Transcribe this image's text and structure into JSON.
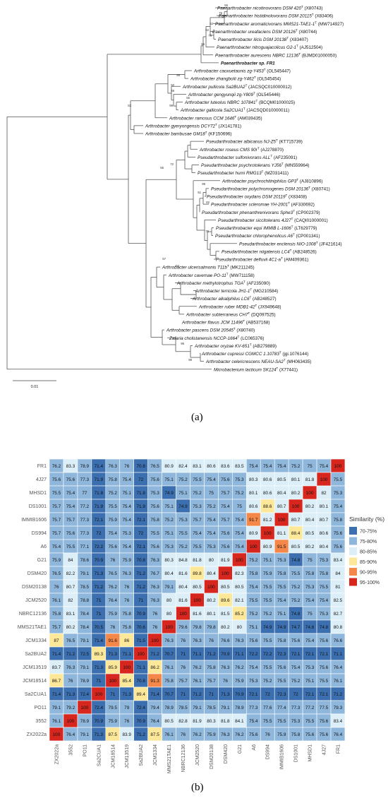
{
  "figure": {
    "panel_a_label": "(a)",
    "panel_b_label": "(b)"
  },
  "tree": {
    "taxa": [
      {
        "name": "Paenarthrobacter nicotinovorans DSM 420",
        "sup": "T",
        "acc": "(X80743)",
        "bold": false
      },
      {
        "name": "Paenarthrobacter histidinolovorans DSM 20115",
        "sup": "T",
        "acc": "(X83406)",
        "bold": false
      },
      {
        "name": "Paenarthrobacter aromaticivorans MMS21-TAE1-1",
        "sup": "T",
        "acc": "(MW714927)",
        "bold": false
      },
      {
        "name": "Paenarthrobacter ureafaciens DSM 20126",
        "sup": "T",
        "acc": "(X80744)",
        "bold": false
      },
      {
        "name": "Paenarthrobacter ilicis DSM 20138",
        "sup": "T",
        "acc": "(X83407)",
        "bold": false
      },
      {
        "name": "Paenarthrobacter nitroguajacolicus G2-1",
        "sup": "T",
        "acc": "(AJ512504)",
        "bold": false
      },
      {
        "name": "Paenarthrobacter aurescens NBRC 12136",
        "sup": "T",
        "acc": "(BJMD01000050)",
        "bold": false
      },
      {
        "name": "Paenarthrobacter sp. FR1",
        "sup": "",
        "acc": "",
        "bold": true
      },
      {
        "name": "Arthrobacter caoxuetaonis zg-Y453",
        "sup": "T",
        "acc": "(OL545447)",
        "bold": false
      },
      {
        "name": "Arthrobacter zhangbolii zg-Y462",
        "sup": "T",
        "acc": "(OL545454)",
        "bold": false
      },
      {
        "name": "Arthrobacter pullicola Sa2BUA2",
        "sup": "T",
        "acc": "(JACSQC010000012)",
        "bold": false
      },
      {
        "name": "Arthrobacter gengyunqii zg-Y809",
        "sup": "T",
        "acc": "(OL545446)",
        "bold": false
      },
      {
        "name": "Arthrobacter luteolus NBRC 107841",
        "sup": "T",
        "acc": "(BCQM01000025)",
        "bold": false
      },
      {
        "name": "Arthrobacter gallicola Sa2CUA1",
        "sup": "T",
        "acc": "(JACSQD010000011)",
        "bold": false
      },
      {
        "name": "Arthrobacter ramosus CCM 1646",
        "sup": "T",
        "acc": "(AM039435)",
        "bold": false
      },
      {
        "name": "Arthrobacter gyeryongensis DCY72",
        "sup": "T",
        "acc": "(JX141781)",
        "bold": false
      },
      {
        "name": "Arthrobacter bambusae GM18",
        "sup": "T",
        "acc": "(KF150696)",
        "bold": false
      },
      {
        "name": "Pseudarthrobacter albicanus NJ-Z5",
        "sup": "T",
        "acc": "(KT715739)",
        "bold": false
      },
      {
        "name": "Arthrobacter roseus CMS 90r",
        "sup": "T",
        "acc": "(AJ278870)",
        "bold": false
      },
      {
        "name": "Pseudarthrobacter sulfonivorans ALL",
        "sup": "T",
        "acc": "(AF235091)",
        "bold": false
      },
      {
        "name": "Pseudarthrobacter psychrotolerans YJ56",
        "sup": "T",
        "acc": "(MN559964)",
        "bold": false
      },
      {
        "name": "Pseudarthrobacter humi RMG13",
        "sup": "T",
        "acc": "(MZ031411)",
        "bold": false
      },
      {
        "name": "Arthrobacter psychrochitiniphilus GP3",
        "sup": "T",
        "acc": "(AJ810896)",
        "bold": false
      },
      {
        "name": "Pseudarthrobacter polychromogenes DSM 20136",
        "sup": "T",
        "acc": "(X80741)",
        "bold": false
      },
      {
        "name": "Pseudarthrobacter oxydans DSM 20119",
        "sup": "T",
        "acc": "(X83408)",
        "bold": false
      },
      {
        "name": "Pseudarthrobacter scleromae YH-2001",
        "sup": "T",
        "acc": "(AF330692)",
        "bold": false
      },
      {
        "name": "Pseudarthrobacter phenanthrenivorans Sphe3",
        "sup": "T",
        "acc": "(CP002379)",
        "bold": false
      },
      {
        "name": "Pseudarthrobacter siccitolerans 4J27",
        "sup": "T",
        "acc": "(CAQI01000001)",
        "bold": false
      },
      {
        "name": "Pseudarthrobacter equi IMMIB L-1606",
        "sup": "T",
        "acc": "(LT629779)",
        "bold": false
      },
      {
        "name": "Pseudarthrobacter chlorophenolicus A6",
        "sup": "T",
        "acc": "(CP001341)",
        "bold": false
      },
      {
        "name": "Pseudarthrobacter enclensis NIO-1008",
        "sup": "T",
        "acc": "(JF421614)",
        "bold": false
      },
      {
        "name": "Pseudarthrobacter niigatensis LC4",
        "sup": "T",
        "acc": "(AB248526)",
        "bold": false
      },
      {
        "name": "Pseudarthrobacter defluvii 4C1-a",
        "sup": "T",
        "acc": "(AM409361)",
        "bold": false
      },
      {
        "name": "Arthrobacter ulcerisalmonis T11b",
        "sup": "T",
        "acc": "(MK211245)",
        "bold": false
      },
      {
        "name": "Arthrobacter cavernae PO-11",
        "sup": "T",
        "acc": "(MW711158)",
        "bold": false
      },
      {
        "name": "Arthrobacter methylotrophus TGA",
        "sup": "T",
        "acc": "(AF235090)",
        "bold": false
      },
      {
        "name": "Arthrobacter terricola JH1-1",
        "sup": "T",
        "acc": "(MG210584)",
        "bold": false
      },
      {
        "name": "Arthrobacter alkaliphilus LC6",
        "sup": "T",
        "acc": "(AB248527)",
        "bold": false
      },
      {
        "name": "Arthrobacter ruber MDB1-42",
        "sup": "T",
        "acc": "(JX949648)",
        "bold": false
      },
      {
        "name": "Arthrobacter subterraneus CH7",
        "sup": "T",
        "acc": "(DQ097525)",
        "bold": false
      },
      {
        "name": "Arthrobacter flavus JCM 11496",
        "sup": "T",
        "acc": "(AB537168)",
        "bold": false
      },
      {
        "name": "Arthrobacter pascens DSM 20545",
        "sup": "T",
        "acc": "(X80740)",
        "bold": false
      },
      {
        "name": "Zafaria cholistanensis NCCP-1664",
        "sup": "T",
        "acc": "(LC065376)",
        "bold": false
      },
      {
        "name": "Arthrobacter oryzae KV-651",
        "sup": "T",
        "acc": "(AB279889)",
        "bold": false
      },
      {
        "name": "Arthrobacter cupressi CGMCC 1.10783",
        "sup": "T",
        "acc": "(jgi.1076144)",
        "bold": false
      },
      {
        "name": "Arthrobacter celericrescens NEAU-SA2",
        "sup": "T",
        "acc": "(MH063435)",
        "bold": false
      },
      {
        "name": "Microbacterium lacticum SK124",
        "sup": "T",
        "acc": "(X77441)",
        "bold": false
      }
    ],
    "bootstrap": [
      "65",
      "76",
      "52",
      "62",
      "79",
      "56",
      "99",
      "50",
      "69",
      "56",
      "99",
      "63",
      "72",
      "55",
      "99",
      "51",
      "82",
      "75",
      "57",
      "94",
      "98",
      "96"
    ],
    "scale_label": "0.01"
  },
  "heatmap": {
    "row_labels": [
      "FR1",
      "4J27",
      "MHSD1",
      "DS1001",
      "IMMIB1606",
      "DS994",
      "A6",
      "G21",
      "DSM420",
      "DSM20138",
      "JCM2520",
      "NBRC12136",
      "MMS21TAE1",
      "JCM1334",
      "Sa2BUA2",
      "JCM13519",
      "JCM18514",
      "Sa2CUA1",
      "PO11",
      "3552",
      "ZX2022a"
    ],
    "col_labels": [
      "ZX2022a",
      "3552",
      "PO11",
      "Sa2CUA1",
      "JCM18514",
      "JCM13519",
      "Sa2BUA2",
      "JCM1334",
      "MMS21TAE1",
      "NBRC12136",
      "JCM2520",
      "DSM20138",
      "DSM420",
      "G21",
      "A6",
      "DS994",
      "IMMIB1606",
      "DS1001",
      "MHSD1",
      "4J27",
      "FR1"
    ],
    "values": [
      [
        "76.2",
        "83.3",
        "78.9",
        "71.4",
        "76.3",
        "76",
        "70.8",
        "76.5",
        "80.9",
        "82.4",
        "83.1",
        "80.6",
        "83.6",
        "83.5",
        "75.4",
        "75.4",
        "75.4",
        "75.2",
        "75",
        "75.4",
        "100"
      ],
      [
        "75.6",
        "75.6",
        "77.3",
        "71.9",
        "75.8",
        "75.4",
        "72",
        "75.6",
        "75.1",
        "75.2",
        "75.5",
        "75.4",
        "75.6",
        "75.3",
        "80.3",
        "80.6",
        "80.5",
        "80.1",
        "81.8",
        "100",
        "75.5"
      ],
      [
        "75.5",
        "75.4",
        "77",
        "71.8",
        "75.2",
        "75.1",
        "71.8",
        "75.3",
        "74.9",
        "75.1",
        "75.2",
        "75",
        "75.7",
        "75.2",
        "80.1",
        "80.6",
        "80.4",
        "80.2",
        "100",
        "82",
        "75.3"
      ],
      [
        "75.7",
        "75.4",
        "77.2",
        "71.9",
        "75.5",
        "75.4",
        "71.9",
        "75.6",
        "75.1",
        "74.9",
        "75.3",
        "75.2",
        "75.4",
        "75",
        "80.6",
        "88.6",
        "80.7",
        "100",
        "80.2",
        "80.1",
        "75.4"
      ],
      [
        "75.7",
        "75.7",
        "77.3",
        "72.1",
        "75.9",
        "75.4",
        "72.1",
        "75.8",
        "75.2",
        "75.3",
        "75.7",
        "75.4",
        "75.7",
        "75.4",
        "91.7",
        "81.2",
        "100",
        "80.7",
        "80.4",
        "80.7",
        "75.8"
      ],
      [
        "75.7",
        "75.6",
        "77.3",
        "72",
        "75.4",
        "75.3",
        "72",
        "75.5",
        "75.1",
        "75.5",
        "75.4",
        "75.4",
        "75.6",
        "75.4",
        "80.9",
        "100",
        "81.1",
        "88.4",
        "80.5",
        "80.6",
        "75.6"
      ],
      [
        "75.4",
        "75.5",
        "77.1",
        "72.2",
        "75.6",
        "75.4",
        "72.1",
        "75.6",
        "75.3",
        "75.2",
        "75.5",
        "75.3",
        "75.6",
        "75.4",
        "100",
        "80.9",
        "91.5",
        "80.5",
        "80.2",
        "80.4",
        "75.6"
      ],
      [
        "75.9",
        "84",
        "78.6",
        "70.9",
        "76",
        "75.9",
        "70.8",
        "76.3",
        "80.3",
        "84.8",
        "81.8",
        "80",
        "81.9",
        "100",
        "75.2",
        "75.1",
        "75.3",
        "74.8",
        "75",
        "75.3",
        "83.4"
      ],
      [
        "76.5",
        "82.2",
        "79.1",
        "71.3",
        "76.5",
        "76.3",
        "71.2",
        "76.7",
        "80.4",
        "81.6",
        "89.8",
        "80.4",
        "100",
        "82.3",
        "75.8",
        "75.9",
        "75.8",
        "75.5",
        "75.8",
        "75.8",
        "84"
      ],
      [
        "76",
        "80.7",
        "78.5",
        "71.2",
        "76.2",
        "76",
        "71.2",
        "76.3",
        "79.1",
        "80.4",
        "80.5",
        "100",
        "80.5",
        "80.5",
        "75.4",
        "75.5",
        "75.5",
        "75.2",
        "75.3",
        "75.5",
        "81"
      ],
      [
        "76.1",
        "82",
        "78.8",
        "71",
        "76.4",
        "76",
        "71",
        "76.3",
        "80",
        "81.6",
        "100",
        "80.2",
        "89.6",
        "82.1",
        "75.5",
        "75.5",
        "75.4",
        "75.2",
        "75.4",
        "75.4",
        "82.5"
      ],
      [
        "75.8",
        "83.1",
        "78.4",
        "71",
        "75.9",
        "75.8",
        "70.9",
        "76",
        "80",
        "100",
        "81.6",
        "80.1",
        "81.5",
        "85.2",
        "75.2",
        "75.2",
        "75.1",
        "74.8",
        "75",
        "75.3",
        "82.7"
      ],
      [
        "75.7",
        "80.2",
        "78.4",
        "70.5",
        "76",
        "75.8",
        "70.6",
        "76",
        "100",
        "79.6",
        "79.8",
        "79.8",
        "80.2",
        "80",
        "75.1",
        "74.9",
        "74.9",
        "74.7",
        "74.6",
        "74.8",
        "80.8"
      ],
      [
        "87",
        "76.5",
        "79.1",
        "71.4",
        "91.6",
        "86",
        "71.5",
        "100",
        "76.3",
        "76",
        "76.3",
        "76",
        "76.6",
        "76.3",
        "75.6",
        "75.5",
        "75.8",
        "75.6",
        "75.4",
        "75.6",
        "76.6"
      ],
      [
        "71.4",
        "71.2",
        "72.5",
        "89.3",
        "71.3",
        "71.1",
        "100",
        "71.2",
        "70.7",
        "71",
        "71.1",
        "71.2",
        "70.9",
        "71.1",
        "72.2",
        "72.2",
        "72.3",
        "72.1",
        "72.1",
        "72.1",
        "71.1"
      ],
      [
        "83.7",
        "76.3",
        "79.1",
        "71.3",
        "85.9",
        "100",
        "71.1",
        "86.2",
        "76.1",
        "76",
        "76.2",
        "75.8",
        "76.3",
        "76.2",
        "75.4",
        "75.5",
        "75.6",
        "75.4",
        "75.3",
        "75.6",
        "76.4"
      ],
      [
        "86.7",
        "76",
        "78.9",
        "71",
        "100",
        "85.4",
        "70.8",
        "91.3",
        "75.8",
        "75.7",
        "76.1",
        "75.7",
        "76",
        "75.9",
        "75.3",
        "75.2",
        "75.5",
        "75.2",
        "75.1",
        "75.5",
        "76.1"
      ],
      [
        "71.4",
        "71.3",
        "72.4",
        "100",
        "71",
        "71.3",
        "89.4",
        "71.4",
        "70.7",
        "71",
        "71.2",
        "71",
        "71.3",
        "70.9",
        "72.1",
        "72",
        "72.3",
        "72",
        "72.1",
        "72.1",
        "71.2"
      ],
      [
        "79.1",
        "79.2",
        "100",
        "72.4",
        "79.5",
        "79",
        "72.4",
        "79.4",
        "78.9",
        "78.5",
        "79.1",
        "78.5",
        "79.1",
        "78.9",
        "77.3",
        "77.6",
        "77.4",
        "77.3",
        "77.2",
        "77.5",
        "79.3"
      ],
      [
        "76.1",
        "100",
        "78.9",
        "70.9",
        "75.9",
        "76",
        "70.9",
        "76.4",
        "80.5",
        "82.8",
        "81.9",
        "80.3",
        "81.8",
        "84.1",
        "75.4",
        "75.5",
        "75.5",
        "75.3",
        "75.5",
        "75.6",
        "83.4"
      ],
      [
        "100",
        "76.4",
        "79.1",
        "71.3",
        "87.5",
        "83.9",
        "71.2",
        "87.5",
        "76.1",
        "76",
        "76.2",
        "75.9",
        "76.3",
        "76.2",
        "75.6",
        "76",
        "75.9",
        "75.8",
        "75.6",
        "75.6",
        "76.4"
      ]
    ],
    "legend_title": "Similarity (%)",
    "legend": [
      {
        "label": "70-75%",
        "color": "#3b6faf"
      },
      {
        "label": "75-80%",
        "color": "#8fb7dc"
      },
      {
        "label": "80-85%",
        "color": "#dceef7"
      },
      {
        "label": "85-90%",
        "color": "#fde89a"
      },
      {
        "label": "90-95%",
        "color": "#f58849"
      },
      {
        "label": "95-100%",
        "color": "#d7261e"
      }
    ]
  }
}
